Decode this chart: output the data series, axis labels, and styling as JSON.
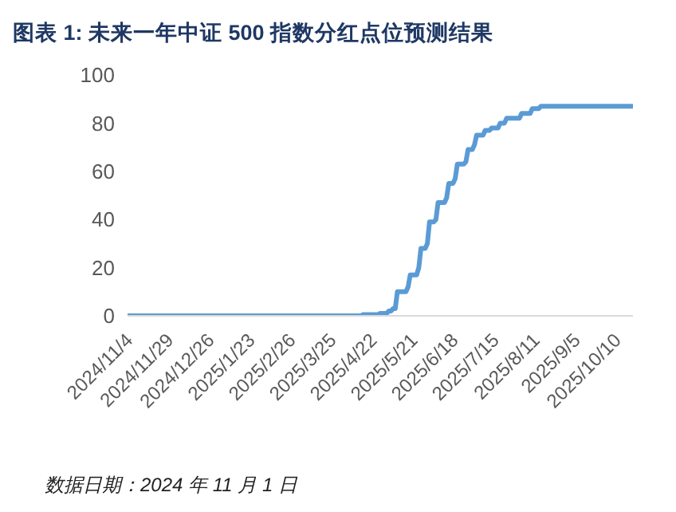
{
  "chart_data": {
    "type": "line",
    "title": "图表 1:  未来一年中证 500 指数分红点位预测结果",
    "annotations": [
      "数据日期：2024 年 11 月 1 日"
    ],
    "categories": [
      "2024/11/4",
      null,
      null,
      null,
      null,
      null,
      null,
      null,
      null,
      null,
      null,
      null,
      null,
      null,
      null,
      null,
      null,
      null,
      null,
      "2024/11/29",
      null,
      null,
      null,
      null,
      null,
      null,
      null,
      null,
      null,
      null,
      null,
      null,
      null,
      null,
      null,
      null,
      null,
      null,
      "2024/12/26",
      null,
      null,
      null,
      null,
      null,
      null,
      null,
      null,
      null,
      null,
      null,
      null,
      null,
      null,
      null,
      null,
      null,
      null,
      "2025/1/23",
      null,
      null,
      null,
      null,
      null,
      null,
      null,
      null,
      null,
      null,
      null,
      null,
      null,
      null,
      null,
      null,
      null,
      null,
      "2025/2/26",
      null,
      null,
      null,
      null,
      null,
      null,
      null,
      null,
      null,
      null,
      null,
      null,
      null,
      null,
      null,
      null,
      null,
      null,
      "2025/3/25",
      null,
      null,
      null,
      null,
      null,
      null,
      null,
      null,
      null,
      null,
      null,
      null,
      null,
      null,
      null,
      null,
      null,
      null,
      "2025/4/22",
      null,
      null,
      null,
      null,
      null,
      null,
      null,
      null,
      null,
      null,
      null,
      null,
      null,
      null,
      null,
      null,
      null,
      null,
      "2025/5/21",
      null,
      null,
      null,
      null,
      null,
      null,
      null,
      null,
      null,
      null,
      null,
      null,
      null,
      null,
      null,
      null,
      null,
      null,
      "2025/6/18",
      null,
      null,
      null,
      null,
      null,
      null,
      null,
      null,
      null,
      null,
      null,
      null,
      null,
      null,
      null,
      null,
      null,
      null,
      "2025/7/15",
      null,
      null,
      null,
      null,
      null,
      null,
      null,
      null,
      null,
      null,
      null,
      null,
      null,
      null,
      null,
      null,
      null,
      null,
      "2025/8/11",
      null,
      null,
      null,
      null,
      null,
      null,
      null,
      null,
      null,
      null,
      null,
      null,
      null,
      null,
      null,
      null,
      null,
      null,
      "2025/9/5",
      null,
      null,
      null,
      null,
      null,
      null,
      null,
      null,
      null,
      null,
      null,
      null,
      null,
      null,
      null,
      null,
      null,
      null,
      "2025/10/10",
      null,
      null,
      null,
      null,
      null,
      null,
      null,
      null
    ],
    "series": [
      {
        "color": "#5b9bd5",
        "values": [
          0,
          0,
          0,
          0,
          0,
          0,
          0,
          0,
          0,
          0,
          0,
          0,
          0,
          0,
          0,
          0,
          0,
          0,
          0,
          0,
          0,
          0,
          0,
          0,
          0,
          0,
          0,
          0,
          0,
          0,
          0,
          0,
          0,
          0,
          0,
          0,
          0,
          0,
          0,
          0,
          0,
          0,
          0,
          0,
          0,
          0,
          0,
          0,
          0,
          0,
          0,
          0,
          0,
          0,
          0,
          0,
          0,
          0,
          0,
          0,
          0,
          0,
          0,
          0,
          0,
          0,
          0,
          0,
          0,
          0,
          0,
          0,
          0,
          0,
          0,
          0,
          0,
          0,
          0,
          0,
          0,
          0,
          0,
          0,
          0,
          0,
          0,
          0,
          0,
          0,
          0,
          0,
          0,
          0,
          0,
          0,
          0,
          0,
          0,
          0,
          0,
          0,
          0,
          0,
          0,
          0,
          0,
          0,
          0,
          0,
          0.5,
          0.5,
          0.5,
          0.5,
          0.5,
          0.5,
          0.5,
          0.5,
          1,
          1,
          1,
          1,
          2,
          2,
          3,
          3,
          10,
          10,
          10,
          10,
          10,
          12,
          17,
          17,
          17,
          17,
          20,
          28,
          28,
          28,
          30,
          39,
          39,
          39,
          40,
          47,
          47,
          47,
          47,
          49,
          55,
          55,
          55,
          57,
          63,
          63,
          63,
          63,
          64,
          69,
          69,
          69,
          71,
          75,
          75,
          75,
          75,
          77,
          77,
          77,
          78,
          78,
          78,
          78,
          80,
          80,
          80,
          82,
          82,
          82,
          82,
          82,
          82,
          82,
          84,
          84,
          84,
          84,
          84,
          86,
          86,
          86,
          86,
          87,
          87,
          87,
          87,
          87,
          87,
          87,
          87,
          87,
          87,
          87,
          87,
          87,
          87,
          87,
          87,
          87,
          87,
          87,
          87,
          87,
          87,
          87,
          87,
          87,
          87,
          87,
          87,
          87,
          87,
          87,
          87,
          87,
          87,
          87,
          87,
          87,
          87,
          87,
          87,
          87,
          87,
          87,
          87
        ]
      }
    ],
    "ylim": [
      0,
      100
    ],
    "yticks": [
      0,
      20,
      40,
      60,
      80,
      100
    ],
    "marker": "none",
    "line_style": "solid"
  }
}
